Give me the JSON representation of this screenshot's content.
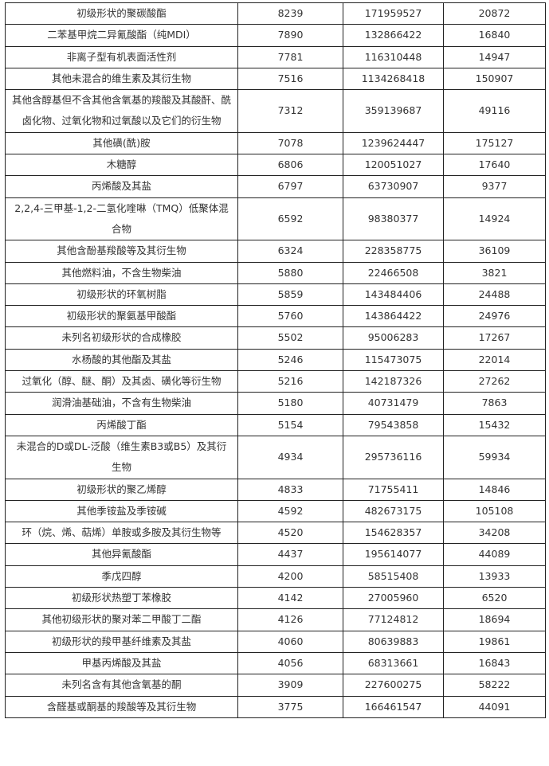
{
  "table": {
    "rows": [
      [
        "初级形状的聚碳酸酯",
        "8239",
        "171959527",
        "20872"
      ],
      [
        "二苯基甲烷二异氰酸酯（纯MDI）",
        "7890",
        "132866422",
        "16840"
      ],
      [
        "非离子型有机表面活性剂",
        "7781",
        "116310448",
        "14947"
      ],
      [
        "其他未混合的维生素及其衍生物",
        "7516",
        "1134268418",
        "150907"
      ],
      [
        "其他含醇基但不含其他含氧基的羧酸及其酸酐、酰卤化物、过氧化物和过氧酸以及它们的衍生物",
        "7312",
        "359139687",
        "49116"
      ],
      [
        "其他磺(酰)胺",
        "7078",
        "1239624447",
        "175127"
      ],
      [
        "木糖醇",
        "6806",
        "120051027",
        "17640"
      ],
      [
        "丙烯酸及其盐",
        "6797",
        "63730907",
        "9377"
      ],
      [
        "2,2,4-三甲基-1,2-二氢化喹啉（TMQ）低聚体混合物",
        "6592",
        "98380377",
        "14924"
      ],
      [
        "其他含酚基羧酸等及其衍生物",
        "6324",
        "228358775",
        "36109"
      ],
      [
        "其他燃料油，不含生物柴油",
        "5880",
        "22466508",
        "3821"
      ],
      [
        "初级形状的环氧树脂",
        "5859",
        "143484406",
        "24488"
      ],
      [
        "初级形状的聚氨基甲酸酯",
        "5760",
        "143864422",
        "24976"
      ],
      [
        "未列名初级形状的合成橡胶",
        "5502",
        "95006283",
        "17267"
      ],
      [
        "水杨酸的其他酯及其盐",
        "5246",
        "115473075",
        "22014"
      ],
      [
        "过氧化（醇、醚、酮）及其卤、磺化等衍生物",
        "5216",
        "142187326",
        "27262"
      ],
      [
        "润滑油基础油，不含有生物柴油",
        "5180",
        "40731479",
        "7863"
      ],
      [
        "丙烯酸丁酯",
        "5154",
        "79543858",
        "15432"
      ],
      [
        "未混合的D或DL-泛酸（维生素B3或B5）及其衍生物",
        "4934",
        "295736116",
        "59934"
      ],
      [
        "初级形状的聚乙烯醇",
        "4833",
        "71755411",
        "14846"
      ],
      [
        "其他季铵盐及季铵碱",
        "4592",
        "482673175",
        "105108"
      ],
      [
        "环（烷、烯、萜烯）单胺或多胺及其衍生物等",
        "4520",
        "154628357",
        "34208"
      ],
      [
        "其他异氰酸酯",
        "4437",
        "195614077",
        "44089"
      ],
      [
        "季戊四醇",
        "4200",
        "58515408",
        "13933"
      ],
      [
        "初级形状热塑丁苯橡胶",
        "4142",
        "27005960",
        "6520"
      ],
      [
        "其他初级形状的聚对苯二甲酸丁二酯",
        "4126",
        "77124812",
        "18694"
      ],
      [
        "初级形状的羧甲基纤维素及其盐",
        "4060",
        "80639883",
        "19861"
      ],
      [
        "甲基丙烯酸及其盐",
        "4056",
        "68313661",
        "16843"
      ],
      [
        "未列名含有其他含氧基的酮",
        "3909",
        "227600275",
        "58222"
      ],
      [
        "含醛基或酮基的羧酸等及其衍生物",
        "3775",
        "166461547",
        "44091"
      ]
    ]
  }
}
